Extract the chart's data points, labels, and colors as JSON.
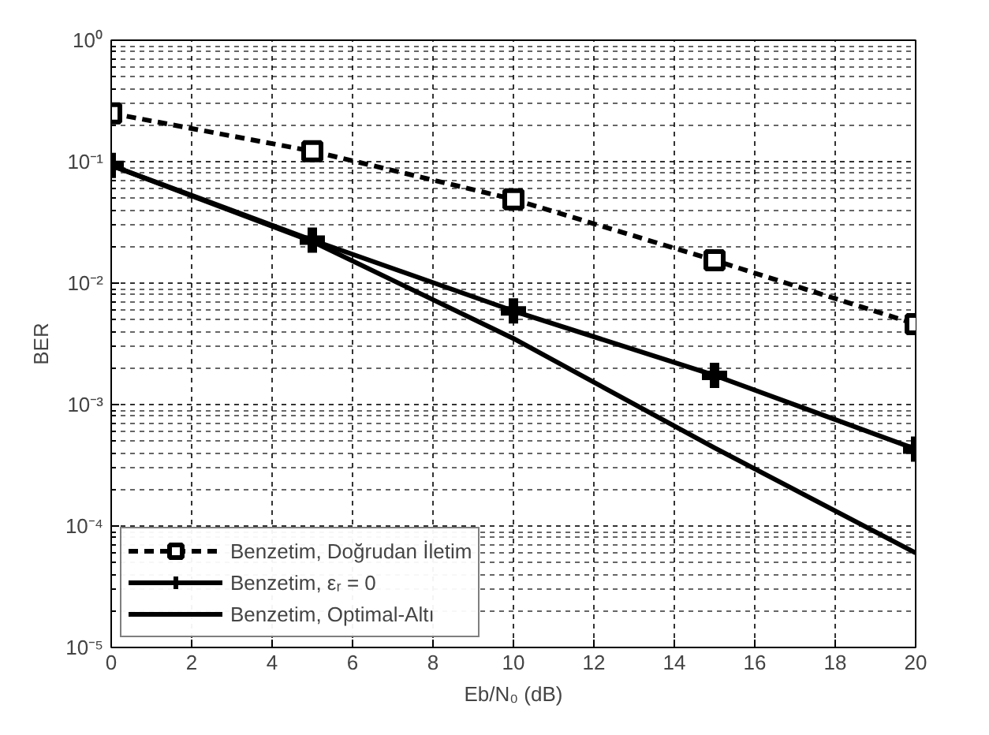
{
  "chart_data": {
    "type": "line",
    "xlabel": "Eb/N₀ (dB)",
    "ylabel": "BER",
    "log": "y",
    "grid": true,
    "legend": "bottom left",
    "x": [
      0,
      5,
      10,
      15,
      20
    ],
    "xlim": [
      0,
      20
    ],
    "xticks": [
      0,
      2,
      4,
      6,
      8,
      10,
      12,
      14,
      16,
      18,
      20
    ],
    "ylim": [
      1e-05,
      1
    ],
    "yticks": [
      {
        "value": 1e-05,
        "label": "10⁻⁵"
      },
      {
        "value": 0.0001,
        "label": "10⁻⁴"
      },
      {
        "value": 0.001,
        "label": "10⁻³"
      },
      {
        "value": 0.01,
        "label": "10⁻²"
      },
      {
        "value": 0.1,
        "label": "10⁻¹"
      },
      {
        "value": 1,
        "label": "10⁰"
      }
    ],
    "series": [
      {
        "name": "Benzetim, Doğrudan İletim",
        "color": "#000000",
        "marker": "square",
        "line_style": "dashed",
        "values": [
          0.25,
          0.122,
          0.049,
          0.0154,
          0.0046
        ]
      },
      {
        "name": "Benzetim, εᵣ = 0",
        "color": "#000000",
        "marker": "cross",
        "line_style": "solid",
        "values": [
          0.093,
          0.0226,
          0.0059,
          0.00174,
          0.00043
        ]
      },
      {
        "name": "Benzetim, Optimal-Altı",
        "color": "#000000",
        "marker": "none",
        "line_style": "solid",
        "values": [
          0.093,
          0.022,
          0.0035,
          0.00044,
          6e-05
        ]
      }
    ]
  }
}
